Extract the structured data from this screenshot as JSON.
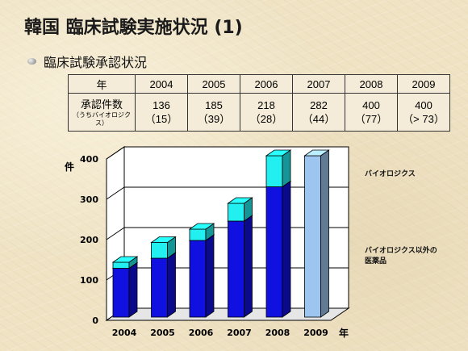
{
  "title": "韓国 臨床試験実施状況 (1)",
  "subtitle": "臨床試験承認状況",
  "table": {
    "header_label": "年",
    "row_label_main": "承認件数",
    "row_label_sub": "（うちバイオロジクス）",
    "columns": [
      {
        "year": "2004",
        "total": "136",
        "bio": "（15）"
      },
      {
        "year": "2005",
        "total": "185",
        "bio": "（39）"
      },
      {
        "year": "2006",
        "total": "218",
        "bio": "（28）"
      },
      {
        "year": "2007",
        "total": "282",
        "bio": "（44）"
      },
      {
        "year": "2008",
        "total": "400",
        "bio": "（77）"
      },
      {
        "year": "2009",
        "total": "400",
        "bio": "（> 73）"
      }
    ]
  },
  "chart_data": {
    "type": "bar",
    "stacked": true,
    "categories": [
      "2004",
      "2005",
      "2006",
      "2007",
      "2008",
      "2009"
    ],
    "series": [
      {
        "name": "バイオロジクス以外の医薬品",
        "values": [
          121,
          146,
          190,
          238,
          323,
          400
        ],
        "color": "#1010e0"
      },
      {
        "name": "バイオロジクス",
        "values": [
          15,
          39,
          28,
          44,
          77,
          0
        ],
        "color": "#22f0f0"
      }
    ],
    "highlight": {
      "category": "2009",
      "value": 400,
      "color": "#9cc6f0"
    },
    "y_ticks": [
      0,
      100,
      200,
      300,
      400
    ],
    "ylim": [
      0,
      400
    ],
    "ylabel": "件",
    "xlabel": "年",
    "grid": true,
    "legend_position": "right"
  },
  "legend": {
    "bio": "バイオロジクス",
    "non_bio_line1": "バイオロジクス以外の",
    "non_bio_line2": "医薬品"
  }
}
